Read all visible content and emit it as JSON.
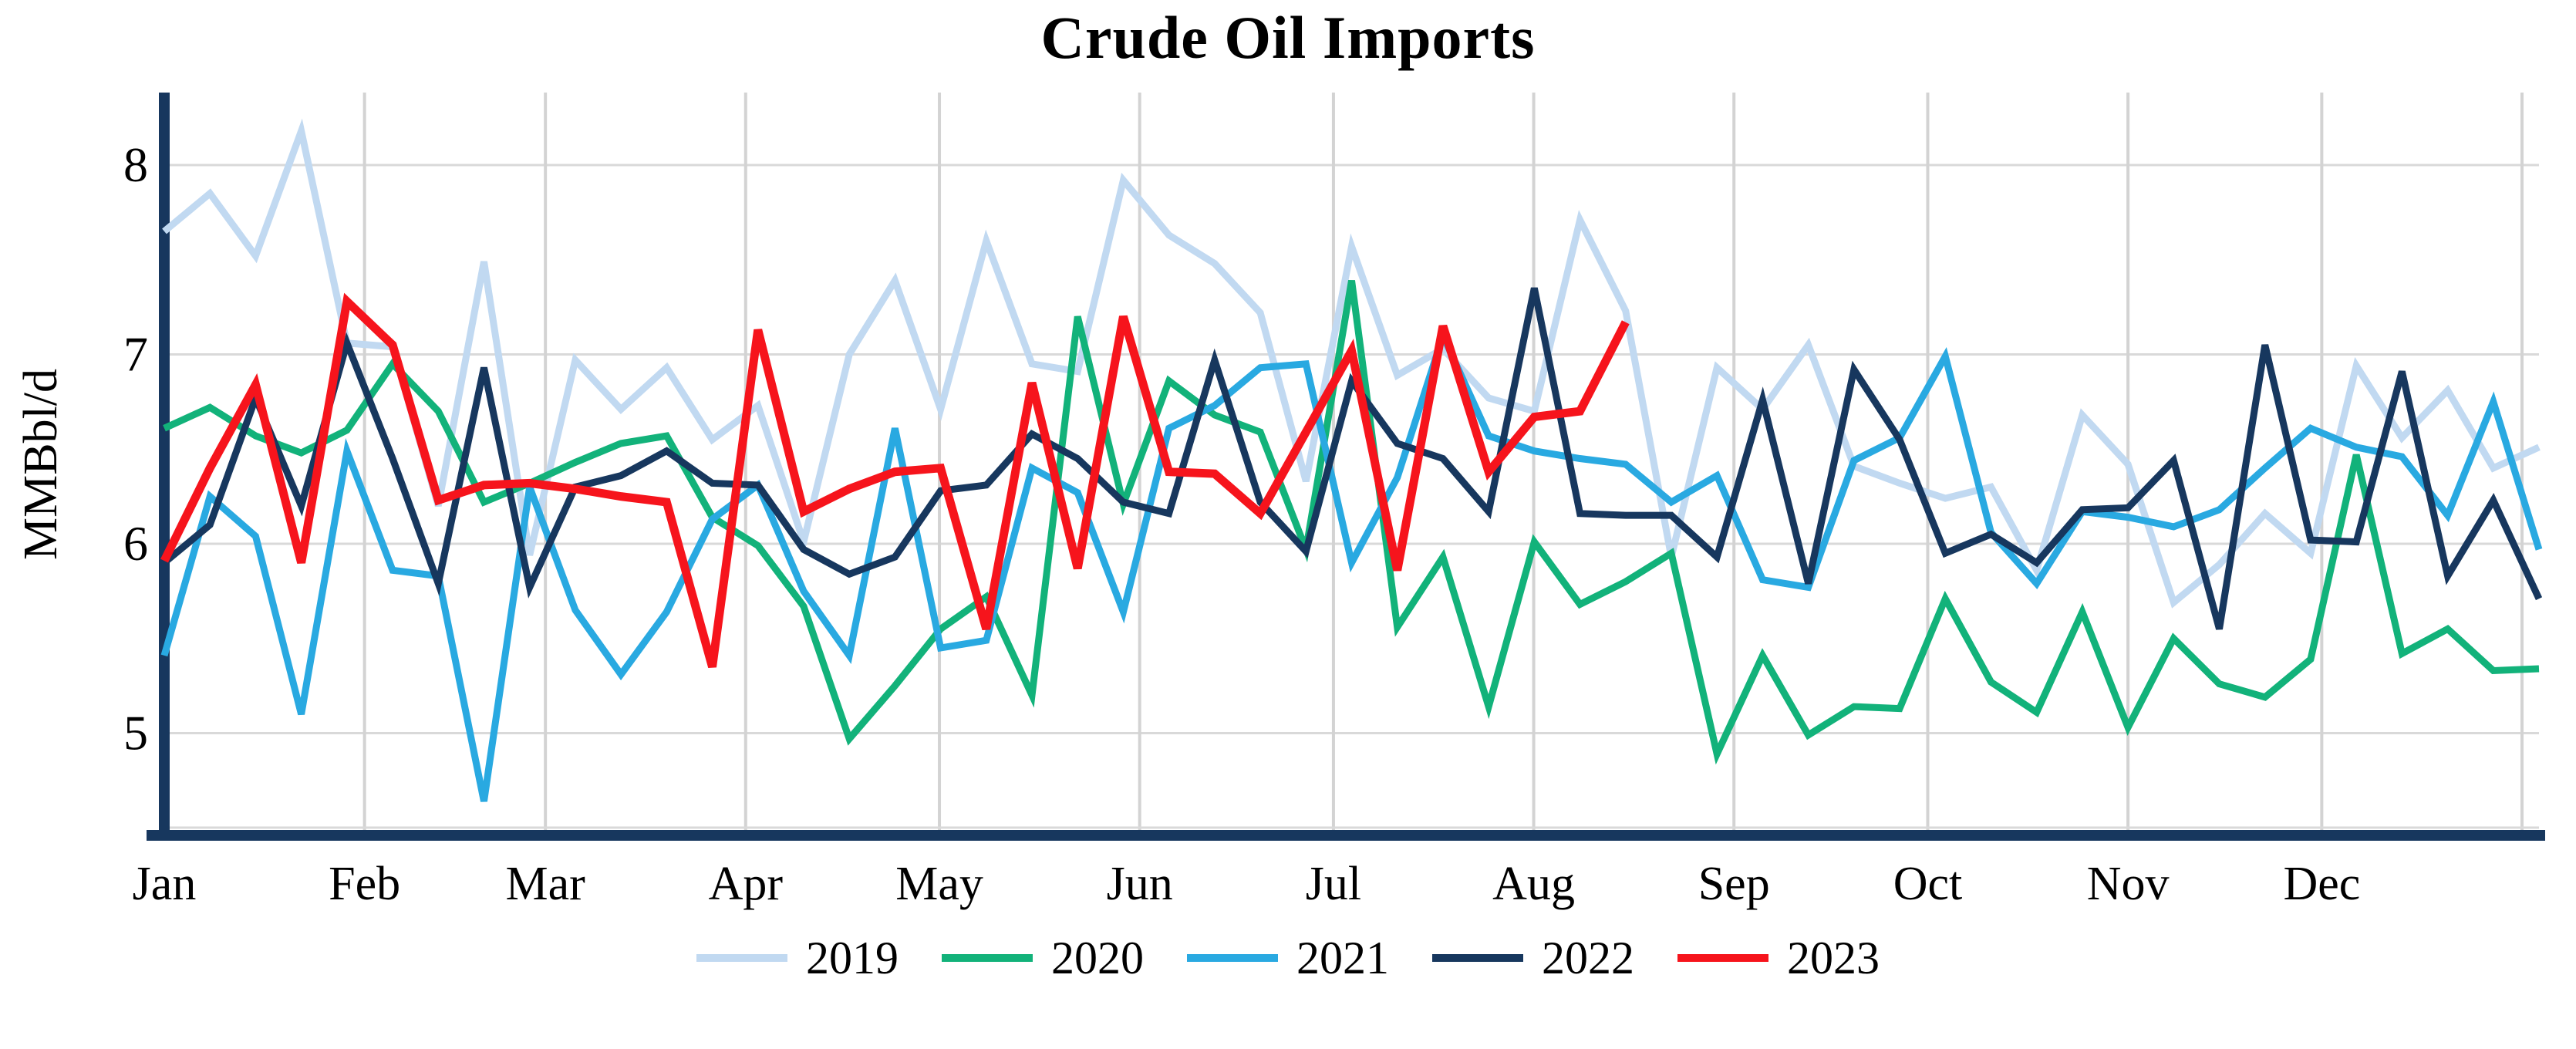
{
  "chart_data": {
    "type": "line",
    "title": "Crude Oil Imports",
    "ylabel": "MMBbl/d",
    "xlabel": "",
    "x_unit": "weekly",
    "categories": [
      "Jan",
      "Feb",
      "Mar",
      "Apr",
      "May",
      "Jun",
      "Jul",
      "Aug",
      "Sep",
      "Oct",
      "Nov",
      "Dec"
    ],
    "month_start_days": [
      0,
      31,
      59,
      90,
      120,
      151,
      181,
      212,
      243,
      273,
      304,
      334
    ],
    "days_in_year": 365,
    "y_ticks": [
      5,
      6,
      7,
      8
    ],
    "ylim": [
      4.45,
      8.36
    ],
    "grid": true,
    "legend_position": "bottom",
    "axis_color": "#17375E",
    "gridline_color": "#D9D9D9",
    "series": [
      {
        "name": "2019",
        "color": "#C1D9F1",
        "width": 9,
        "values": [
          7.65,
          7.85,
          7.52,
          8.18,
          7.06,
          7.04,
          6.2,
          7.49,
          5.94,
          6.97,
          6.71,
          6.93,
          6.55,
          6.73,
          6.01,
          7.0,
          7.39,
          6.71,
          7.6,
          6.95,
          6.91,
          7.92,
          7.63,
          7.48,
          7.22,
          6.33,
          7.57,
          6.89,
          7.03,
          6.77,
          6.7,
          7.71,
          7.23,
          5.93,
          6.93,
          6.71,
          7.05,
          6.41,
          6.32,
          6.24,
          6.3,
          5.86,
          6.68,
          6.42,
          5.69,
          5.89,
          6.16,
          5.95,
          6.94,
          6.56,
          6.81,
          6.4,
          6.51
        ]
      },
      {
        "name": "2020",
        "color": "#12B27A",
        "width": 9,
        "values": [
          6.61,
          6.72,
          6.57,
          6.48,
          6.6,
          6.95,
          6.7,
          6.22,
          6.32,
          6.43,
          6.53,
          6.57,
          6.14,
          5.99,
          5.67,
          4.97,
          5.25,
          5.55,
          5.72,
          5.2,
          7.2,
          6.21,
          6.86,
          6.68,
          6.59,
          5.97,
          7.39,
          5.56,
          5.93,
          5.14,
          6.01,
          5.68,
          5.8,
          5.95,
          4.89,
          5.41,
          4.99,
          5.14,
          5.13,
          5.71,
          5.27,
          5.11,
          5.64,
          5.03,
          5.5,
          5.26,
          5.19,
          5.39,
          6.47,
          5.42,
          5.55,
          5.33,
          5.34
        ]
      },
      {
        "name": "2021",
        "color": "#29A9E1",
        "width": 9,
        "values": [
          5.41,
          6.25,
          6.04,
          5.1,
          6.49,
          5.86,
          5.83,
          4.64,
          6.3,
          5.65,
          5.31,
          5.64,
          6.13,
          6.31,
          5.75,
          5.41,
          6.61,
          5.45,
          5.49,
          6.4,
          6.27,
          5.64,
          6.61,
          6.73,
          6.93,
          6.95,
          5.9,
          6.35,
          7.1,
          6.57,
          6.49,
          6.45,
          6.42,
          6.22,
          6.36,
          5.81,
          5.77,
          6.44,
          6.56,
          6.99,
          6.06,
          5.79,
          6.17,
          6.14,
          6.09,
          6.18,
          6.4,
          6.61,
          6.51,
          6.46,
          6.15,
          6.75,
          5.97
        ]
      },
      {
        "name": "2022",
        "color": "#17375E",
        "width": 9,
        "values": [
          5.9,
          6.1,
          6.77,
          6.2,
          7.06,
          6.45,
          5.79,
          6.93,
          5.77,
          6.3,
          6.36,
          6.49,
          6.32,
          6.31,
          5.97,
          5.84,
          5.93,
          6.28,
          6.31,
          6.58,
          6.45,
          6.22,
          6.16,
          6.97,
          6.22,
          5.96,
          6.86,
          6.53,
          6.45,
          6.17,
          7.35,
          6.16,
          6.15,
          6.15,
          5.93,
          6.76,
          5.79,
          6.92,
          6.55,
          5.95,
          6.05,
          5.9,
          6.18,
          6.19,
          6.44,
          5.55,
          7.05,
          6.02,
          6.01,
          6.91,
          5.83,
          6.23,
          5.71
        ]
      },
      {
        "name": "2023",
        "color": "#F6141C",
        "width": 11,
        "values": [
          5.91,
          6.4,
          6.84,
          5.9,
          7.28,
          7.05,
          6.23,
          6.31,
          6.32,
          6.29,
          6.25,
          6.22,
          5.35,
          7.13,
          6.17,
          6.29,
          6.38,
          6.4,
          5.55,
          6.85,
          5.87,
          7.2,
          6.38,
          6.37,
          6.16,
          6.59,
          7.02,
          5.86,
          7.15,
          6.38,
          6.67,
          6.7,
          7.17
        ]
      }
    ]
  }
}
